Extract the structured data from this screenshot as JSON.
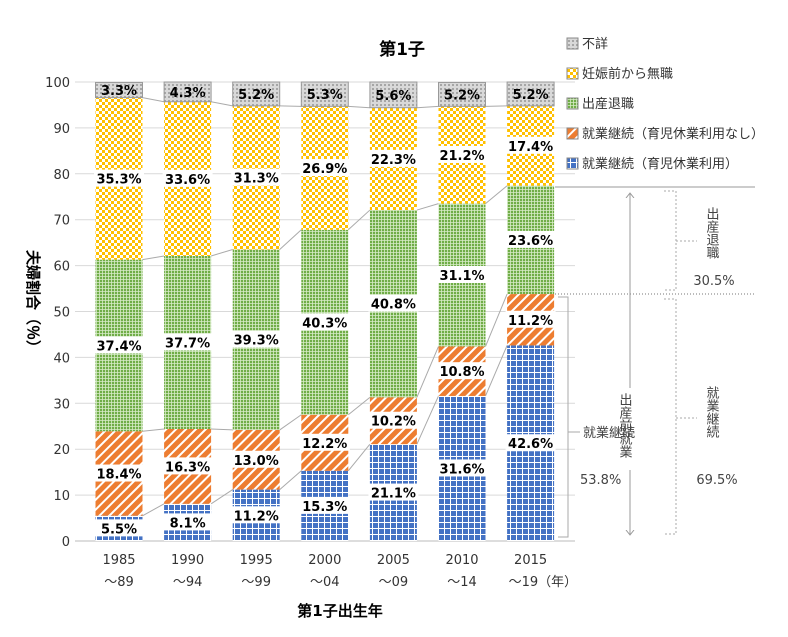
{
  "chart_data": {
    "type": "bar",
    "stacked": true,
    "title": "第1子",
    "xlabel": "第1子出生年",
    "ylabel": "夫婦割合（％）",
    "ylim": [
      0,
      100
    ],
    "yticks": [
      0,
      10,
      20,
      30,
      40,
      50,
      60,
      70,
      80,
      90,
      100
    ],
    "grid": true,
    "legend_position": "top-right",
    "categories": [
      {
        "line1": "1985",
        "line2": "～89"
      },
      {
        "line1": "1990",
        "line2": "～94"
      },
      {
        "line1": "1995",
        "line2": "～99"
      },
      {
        "line1": "2000",
        "line2": "～04"
      },
      {
        "line1": "2005",
        "line2": "～09"
      },
      {
        "line1": "2010",
        "line2": "～14"
      },
      {
        "line1": "2015",
        "line2": "～19（年）"
      }
    ],
    "series": [
      {
        "name": "就業継続（育児休業利用）",
        "color": "#4472C4",
        "pattern": "grid",
        "values": [
          5.5,
          8.1,
          11.2,
          15.3,
          21.1,
          31.6,
          42.6
        ]
      },
      {
        "name": "就業継続（育児休業利用なし）",
        "color": "#ED7D31",
        "pattern": "diagonal",
        "values": [
          18.4,
          16.3,
          13.0,
          12.2,
          10.2,
          10.8,
          11.2
        ]
      },
      {
        "name": "出産退職",
        "color": "#70AD47",
        "pattern": "fine-grid",
        "values": [
          37.4,
          37.7,
          39.3,
          40.3,
          40.8,
          31.1,
          23.6
        ]
      },
      {
        "name": "妊娠前から無職",
        "color": "#FFC000",
        "pattern": "checker",
        "values": [
          35.3,
          33.6,
          31.3,
          26.9,
          22.3,
          21.2,
          17.4
        ]
      },
      {
        "name": "不詳",
        "color": "#BFBFBF",
        "pattern": "dots",
        "values": [
          3.3,
          4.3,
          5.2,
          5.3,
          5.6,
          5.2,
          5.2
        ]
      }
    ],
    "annotations": {
      "pre_birth_employment": "出産前就業",
      "continued_left_label": "就業継続",
      "continued_left_value": "53.8%",
      "quit_label": "出産退職",
      "quit_value": "30.5%",
      "continued_right_label": "就業継続",
      "continued_right_value": "69.5%"
    }
  }
}
